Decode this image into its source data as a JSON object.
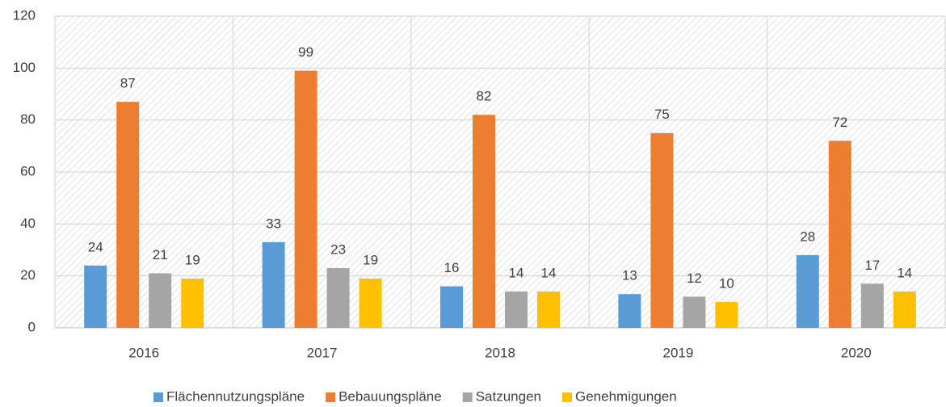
{
  "chart_data": {
    "type": "bar",
    "categories": [
      "2016",
      "2017",
      "2018",
      "2019",
      "2020"
    ],
    "series": [
      {
        "name": "Flächennutzungspläne",
        "color": "#5b9bd5",
        "values": [
          24,
          33,
          16,
          13,
          28
        ]
      },
      {
        "name": "Bebauungspläne",
        "color": "#ed7d31",
        "values": [
          87,
          99,
          82,
          75,
          72
        ]
      },
      {
        "name": "Satzungen",
        "color": "#a5a5a5",
        "values": [
          21,
          23,
          14,
          12,
          17
        ]
      },
      {
        "name": "Genehmigungen",
        "color": "#ffc000",
        "values": [
          19,
          19,
          14,
          10,
          14
        ]
      }
    ],
    "ylim": [
      0,
      120
    ],
    "yticks": [
      0,
      20,
      40,
      60,
      80,
      100,
      120
    ],
    "grid": true,
    "legend": "bottom"
  }
}
